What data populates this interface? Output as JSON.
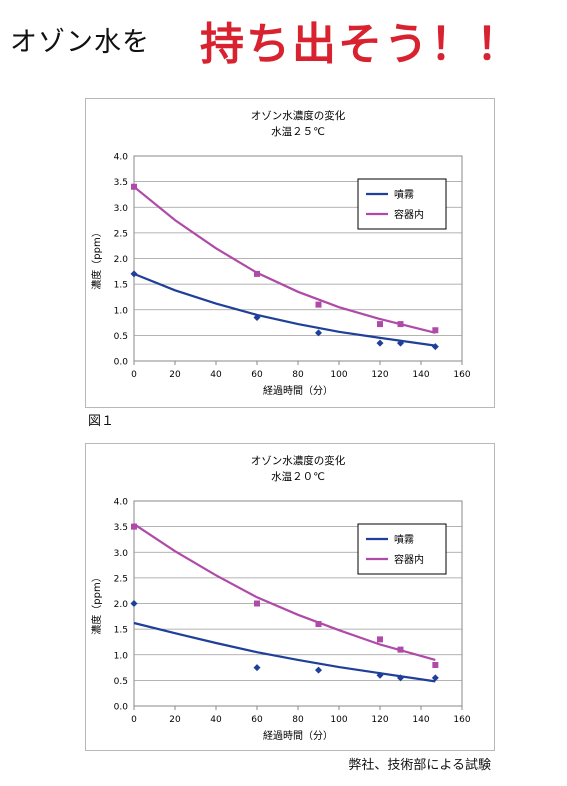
{
  "header": {
    "left": "オゾン水を",
    "right": "持ち出そう！！"
  },
  "figure_label": "図１",
  "footer_note": "弊社、技術部による試験",
  "colors": {
    "spray": "#1f3f9a",
    "container": "#b04aa8",
    "headline": "#d8222f"
  },
  "chart_data": [
    {
      "type": "scatter",
      "title": "オゾン水濃度の変化",
      "subtitle": "水温２５℃",
      "xlabel": "経過時間（分）",
      "ylabel": "濃度（ppm）",
      "xlim": [
        0,
        160
      ],
      "ylim": [
        0,
        4.0
      ],
      "xticks": [
        "0",
        "20",
        "40",
        "60",
        "80",
        "100",
        "120",
        "140",
        "160"
      ],
      "yticks": [
        "0.0",
        "0.5",
        "1.0",
        "1.5",
        "2.0",
        "2.5",
        "3.0",
        "3.5",
        "4.0"
      ],
      "grid": true,
      "legend_position": "top-right",
      "series": [
        {
          "name": "噴霧",
          "marker": "diamond",
          "points": [
            [
              0,
              1.7
            ],
            [
              60,
              0.85
            ],
            [
              90,
              0.55
            ],
            [
              120,
              0.35
            ],
            [
              130,
              0.35
            ],
            [
              147,
              0.28
            ]
          ],
          "trendline": [
            [
              0,
              1.7
            ],
            [
              20,
              1.38
            ],
            [
              40,
              1.12
            ],
            [
              60,
              0.9
            ],
            [
              80,
              0.72
            ],
            [
              100,
              0.57
            ],
            [
              120,
              0.45
            ],
            [
              147,
              0.3
            ]
          ]
        },
        {
          "name": "容器内",
          "marker": "square",
          "points": [
            [
              0,
              3.4
            ],
            [
              60,
              1.7
            ],
            [
              90,
              1.1
            ],
            [
              120,
              0.72
            ],
            [
              130,
              0.72
            ],
            [
              147,
              0.6
            ]
          ],
          "trendline": [
            [
              0,
              3.4
            ],
            [
              20,
              2.75
            ],
            [
              40,
              2.2
            ],
            [
              60,
              1.72
            ],
            [
              80,
              1.35
            ],
            [
              100,
              1.05
            ],
            [
              120,
              0.82
            ],
            [
              147,
              0.55
            ]
          ]
        }
      ]
    },
    {
      "type": "scatter",
      "title": "オゾン水濃度の変化",
      "subtitle": "水温２０℃",
      "xlabel": "経過時間（分）",
      "ylabel": "濃度（ppm）",
      "xlim": [
        0,
        160
      ],
      "ylim": [
        0,
        4.0
      ],
      "xticks": [
        "0",
        "20",
        "40",
        "60",
        "80",
        "100",
        "120",
        "140",
        "160"
      ],
      "yticks": [
        "0.0",
        "0.5",
        "1.0",
        "1.5",
        "2.0",
        "2.5",
        "3.0",
        "3.5",
        "4.0"
      ],
      "grid": true,
      "legend_position": "top-right",
      "series": [
        {
          "name": "噴霧",
          "marker": "diamond",
          "points": [
            [
              0,
              2.0
            ],
            [
              60,
              0.75
            ],
            [
              90,
              0.7
            ],
            [
              120,
              0.6
            ],
            [
              130,
              0.55
            ],
            [
              147,
              0.55
            ]
          ],
          "trendline": [
            [
              0,
              1.62
            ],
            [
              20,
              1.42
            ],
            [
              40,
              1.23
            ],
            [
              60,
              1.05
            ],
            [
              80,
              0.9
            ],
            [
              100,
              0.76
            ],
            [
              120,
              0.64
            ],
            [
              147,
              0.48
            ]
          ]
        },
        {
          "name": "容器内",
          "marker": "square",
          "points": [
            [
              0,
              3.5
            ],
            [
              60,
              2.0
            ],
            [
              90,
              1.6
            ],
            [
              120,
              1.3
            ],
            [
              130,
              1.1
            ],
            [
              147,
              0.8
            ]
          ],
          "trendline": [
            [
              0,
              3.55
            ],
            [
              20,
              3.02
            ],
            [
              40,
              2.55
            ],
            [
              60,
              2.12
            ],
            [
              80,
              1.78
            ],
            [
              100,
              1.48
            ],
            [
              120,
              1.2
            ],
            [
              147,
              0.9
            ]
          ]
        }
      ]
    }
  ]
}
